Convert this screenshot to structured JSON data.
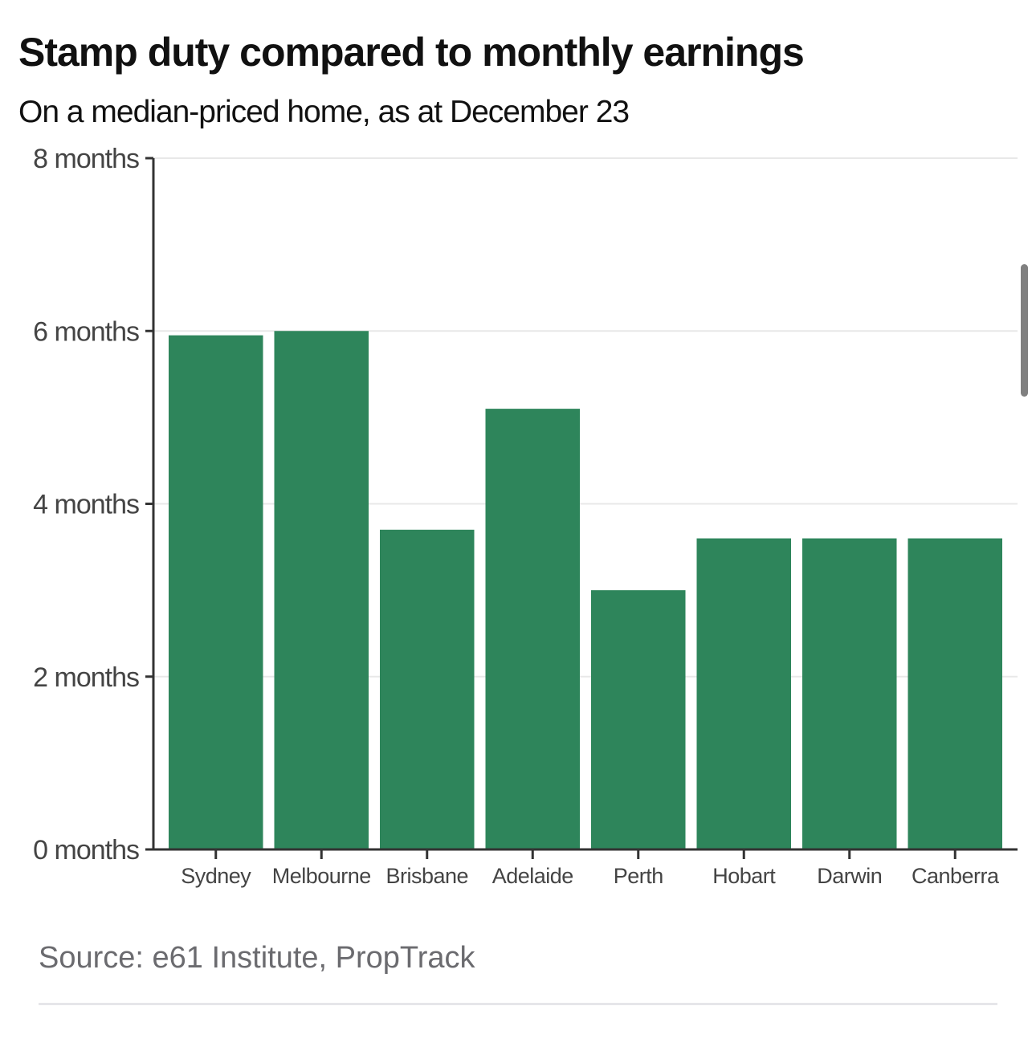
{
  "chart_data": {
    "type": "bar",
    "title": "Stamp duty compared to monthly earnings",
    "subtitle": "On a median-priced home, as at December 23",
    "categories": [
      "Sydney",
      "Melbourne",
      "Brisbane",
      "Adelaide",
      "Perth",
      "Hobart",
      "Darwin",
      "Canberra"
    ],
    "values": [
      5.95,
      6.0,
      3.7,
      5.1,
      3.0,
      3.6,
      3.6,
      3.6
    ],
    "xlabel": "",
    "ylabel": "",
    "ylim": [
      0,
      8
    ],
    "yticks": [
      0,
      2,
      4,
      6,
      8
    ],
    "ytick_labels": [
      "0 months",
      "2 months",
      "4 months",
      "6 months",
      "8 months"
    ],
    "grid": true,
    "bar_color": "#2e855b",
    "source": "Source: e61 Institute, PropTrack"
  }
}
